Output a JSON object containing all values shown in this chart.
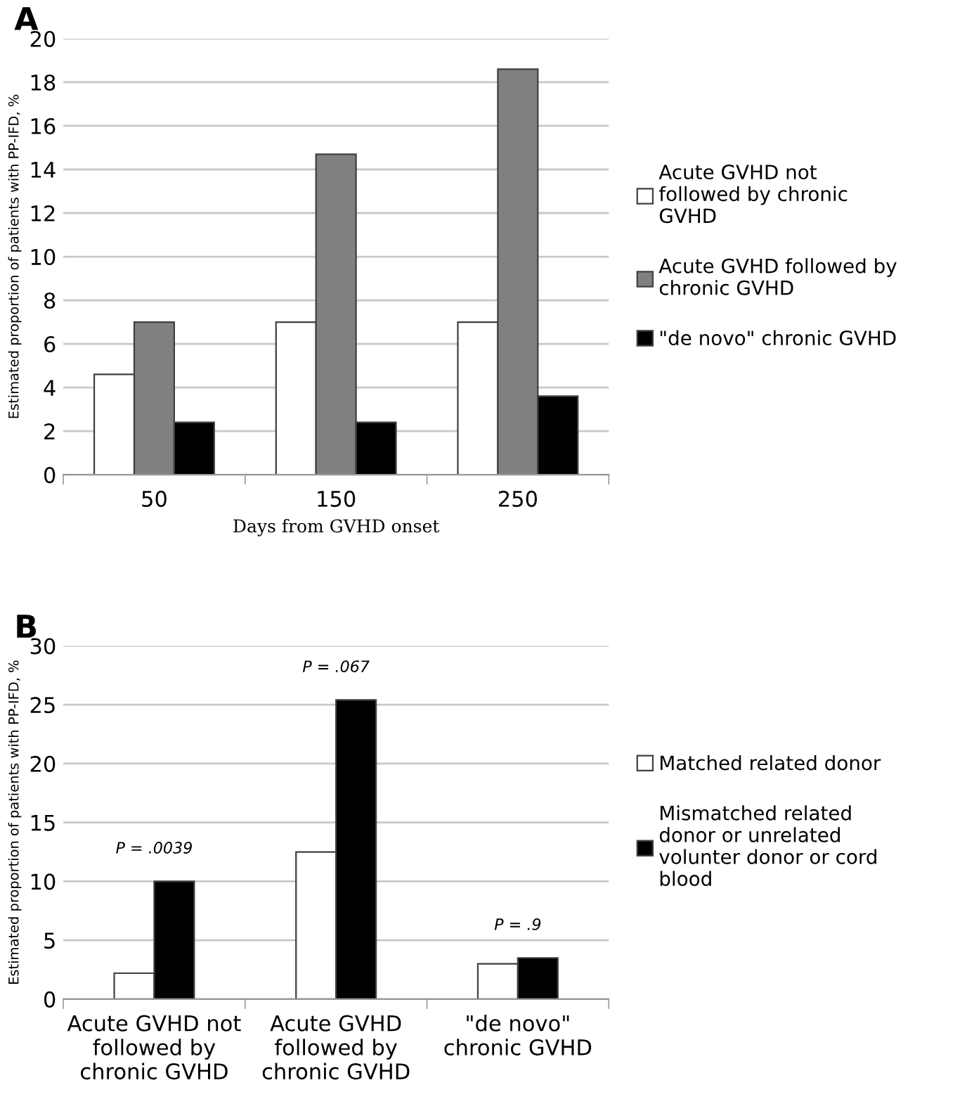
{
  "chart_data": [
    {
      "type": "bar",
      "title": "A",
      "xlabel": "Days from GVHD onset",
      "ylabel": "Estimated proportion of patients with PP-IFD, %",
      "categories": [
        "50",
        "150",
        "250"
      ],
      "series": [
        {
          "name": "Acute GVHD not followed by chronic GVHD",
          "color": "#ffffff",
          "values": [
            4.6,
            7.0,
            7.0
          ]
        },
        {
          "name": "Acute GVHD followed by chronic GVHD",
          "color": "#808080",
          "values": [
            7.0,
            14.7,
            18.6
          ]
        },
        {
          "name": "\"de novo\" chronic GVHD",
          "color": "#000000",
          "values": [
            2.4,
            2.4,
            3.6
          ]
        }
      ],
      "ylim": [
        0,
        20
      ],
      "yticks": [
        0,
        2,
        4,
        6,
        8,
        10,
        12,
        14,
        16,
        18,
        20
      ],
      "grid": "y",
      "legend": "right"
    },
    {
      "type": "bar",
      "title": "B",
      "ylabel": "Estimated proportion of patients with PP-IFD, %",
      "categories": [
        "Acute GVHD not followed by chronic GVHD",
        "Acute GVHD followed by chronic GVHD",
        "\"de novo\" chronic GVHD"
      ],
      "series": [
        {
          "name": "Matched related donor",
          "color": "#ffffff",
          "values": [
            2.2,
            12.5,
            3.0
          ]
        },
        {
          "name": "Mismatched related donor or unrelated volunter donor or cord blood",
          "color": "#000000",
          "values": [
            10.0,
            25.4,
            3.5
          ]
        }
      ],
      "annotations": [
        "P = .0039",
        "P = .067",
        "P = .9"
      ],
      "ylim": [
        0,
        30
      ],
      "yticks": [
        0,
        5,
        10,
        15,
        20,
        25,
        30
      ],
      "grid": "y",
      "legend": "right"
    }
  ]
}
